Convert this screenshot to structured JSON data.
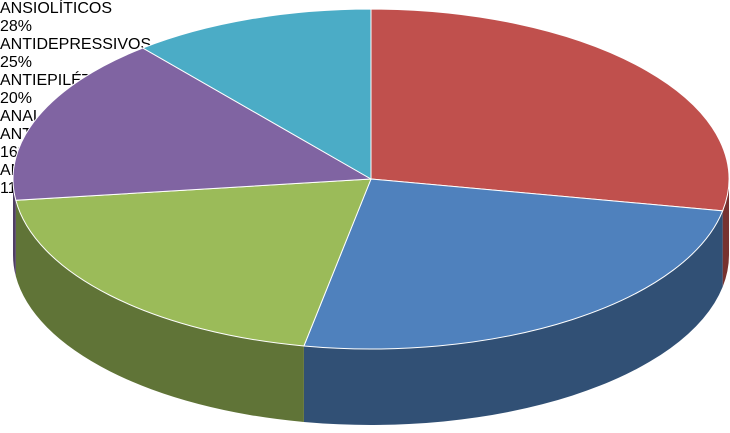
{
  "chart_data": {
    "type": "pie3d",
    "categories": [
      "ANSIOLÍTICOS",
      "ANTIDEPRESSIVOS",
      "ANTIEPILÉTICOS",
      "ANALGÉSICOS E ANTIPIRÉTICOS",
      "ANTIPSICÓTICOS"
    ],
    "values": [
      28,
      25,
      20,
      16,
      11
    ],
    "value_labels": [
      "28%",
      "25%",
      "20%",
      "16%",
      "11%"
    ],
    "colors": [
      "#c0504d",
      "#4f81bd",
      "#9bbb59",
      "#8064a2",
      "#4bacc6"
    ]
  }
}
